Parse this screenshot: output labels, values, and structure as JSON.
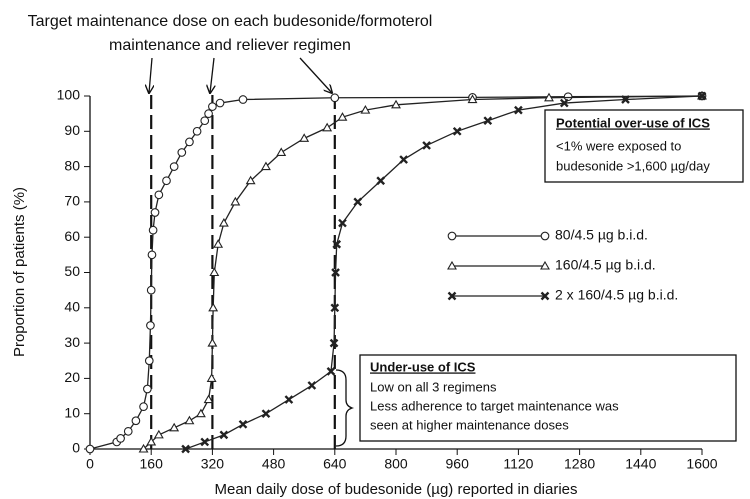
{
  "chart_data": {
    "type": "line",
    "title_lines": [
      "Target maintenance dose on each budesonide/formoterol",
      "maintenance and reliever regimen"
    ],
    "x_label": "Mean daily dose of budesonide (µg) reported in diaries",
    "y_label": "Proportion of patients (%)",
    "xlim": [
      0,
      1600
    ],
    "ylim": [
      0,
      100
    ],
    "xticks": [
      0,
      160,
      320,
      480,
      640,
      800,
      960,
      1120,
      1280,
      1440,
      1600
    ],
    "yticks": [
      0,
      10,
      20,
      30,
      40,
      50,
      60,
      70,
      80,
      90,
      100
    ],
    "grid": false,
    "reference_lines_x": [
      160,
      320,
      640
    ],
    "series": [
      {
        "name": "80/4.5 µg b.i.d.",
        "color": "#222222",
        "marker": "circle",
        "x": [
          0,
          70,
          80,
          100,
          120,
          140,
          150,
          155,
          158,
          160,
          162,
          165,
          170,
          180,
          200,
          220,
          240,
          260,
          280,
          300,
          310,
          320,
          340,
          400,
          640,
          1000,
          1250,
          1600
        ],
        "values": [
          0,
          2,
          3,
          5,
          8,
          12,
          17,
          25,
          35,
          45,
          55,
          62,
          67,
          72,
          76,
          80,
          84,
          87,
          90,
          93,
          95,
          97,
          98,
          99,
          99.5,
          99.6,
          99.8,
          100
        ]
      },
      {
        "name": "160/4.5 µg b.i.d.",
        "color": "#222222",
        "marker": "triangle",
        "x": [
          140,
          160,
          180,
          220,
          260,
          290,
          310,
          318,
          320,
          322,
          325,
          335,
          350,
          380,
          420,
          460,
          500,
          560,
          620,
          660,
          720,
          800,
          1000,
          1200,
          1600
        ],
        "values": [
          0,
          2,
          4,
          6,
          8,
          10,
          14,
          20,
          30,
          40,
          50,
          58,
          64,
          70,
          76,
          80,
          84,
          88,
          91,
          94,
          96,
          97.5,
          99,
          99.5,
          100
        ]
      },
      {
        "name": "2 x 160/4.5 µg b.i.d.",
        "color": "#222222",
        "marker": "cross",
        "x": [
          250,
          300,
          350,
          400,
          460,
          520,
          580,
          630,
          638,
          640,
          642,
          645,
          660,
          700,
          760,
          820,
          880,
          960,
          1040,
          1120,
          1240,
          1400,
          1600
        ],
        "values": [
          0,
          2,
          4,
          7,
          10,
          14,
          18,
          22,
          30,
          40,
          50,
          58,
          64,
          70,
          76,
          82,
          86,
          90,
          93,
          96,
          98,
          99,
          100
        ]
      }
    ],
    "over_use_box": {
      "heading": "Potential over-use of ICS",
      "lines": [
        "<1% were exposed to",
        "budesonide >1,600 µg/day"
      ]
    },
    "under_use_box": {
      "heading": "Under-use of ICS",
      "lines": [
        "Low on all 3 regimens",
        "Less adherence to target maintenance was",
        "seen at higher maintenance doses"
      ]
    }
  }
}
